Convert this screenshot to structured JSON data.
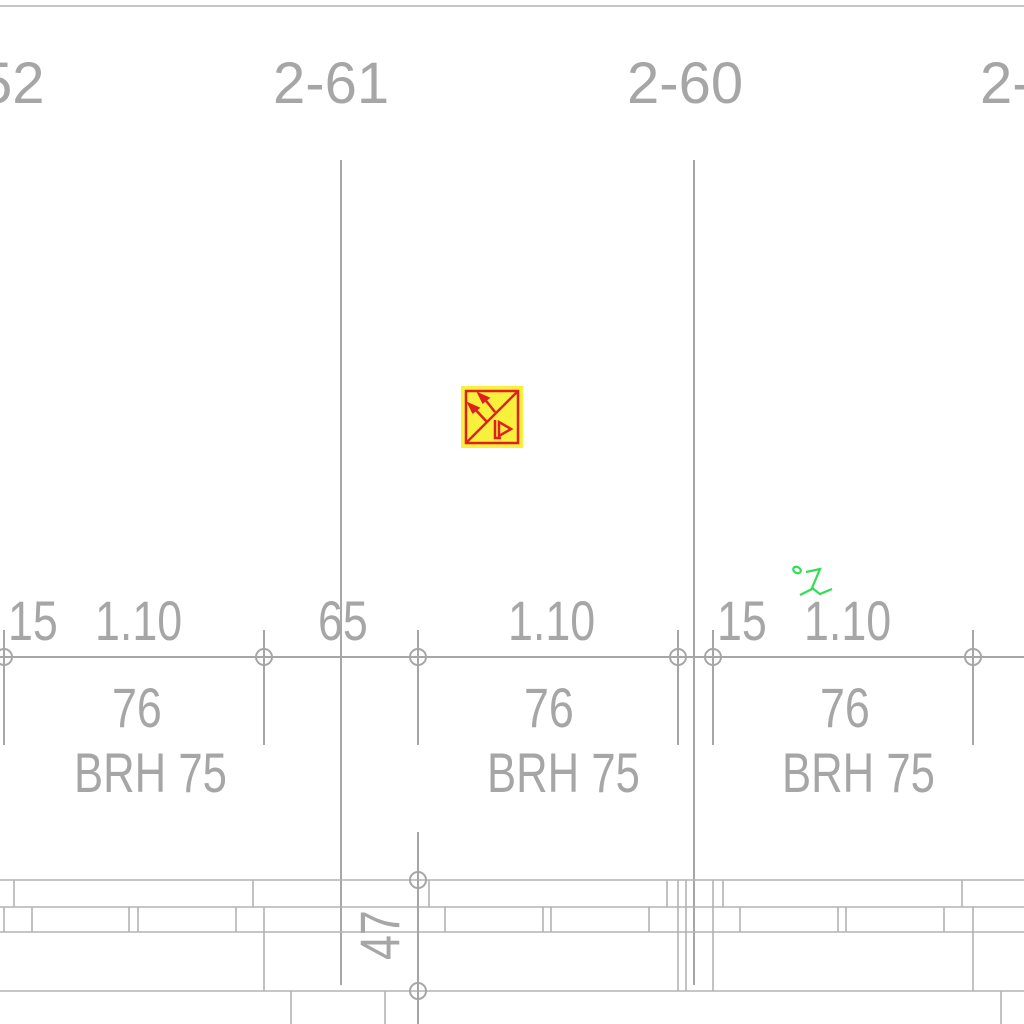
{
  "drawing": {
    "room_labels": [
      "52",
      "2-61",
      "2-60",
      "2-"
    ],
    "dimensions_row1": [
      "15",
      "1.10",
      "65",
      "1.10",
      "15",
      "1.10"
    ],
    "dimensions_row2": [
      "76",
      "76",
      "76"
    ],
    "door_labels": [
      "BRH 75",
      "BRH 75",
      "BRH 75"
    ],
    "vertical_dimension": "47",
    "symbol": {
      "name": "fire-alarm-device",
      "background_color": "#f7f03c",
      "line_color": "#e02020"
    },
    "annotation_color": "#33dd55",
    "line_color": "#a6a6a6"
  }
}
